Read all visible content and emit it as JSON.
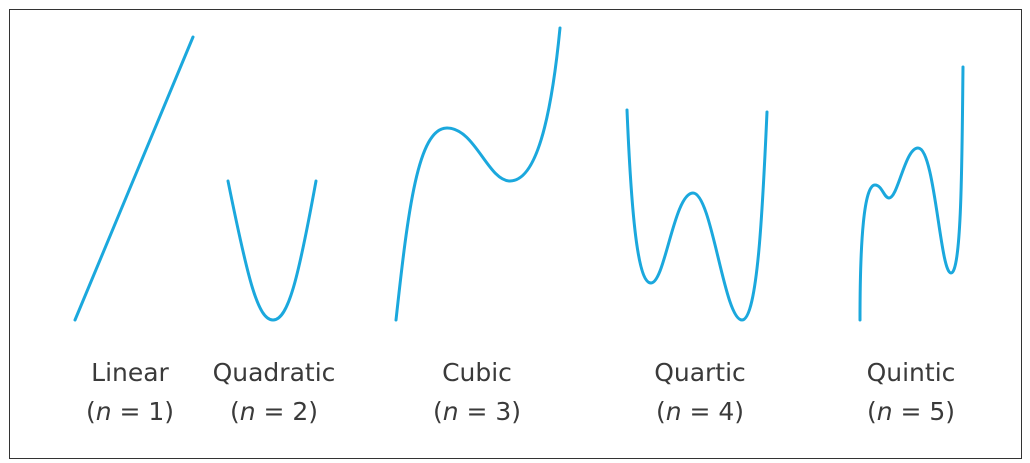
{
  "curves": [
    {
      "label": "Linear",
      "degree": [
        "(",
        "n",
        " = 1)"
      ]
    },
    {
      "label": "Quadratic",
      "degree": [
        "(",
        "n",
        " = 2)"
      ]
    },
    {
      "label": "Cubic",
      "degree": [
        "(",
        "n",
        " = 3)"
      ]
    },
    {
      "label": "Quartic",
      "degree": [
        "(",
        "n",
        " = 4)"
      ]
    },
    {
      "label": "Quintic",
      "degree": [
        "(",
        "n",
        " = 5)"
      ]
    }
  ]
}
